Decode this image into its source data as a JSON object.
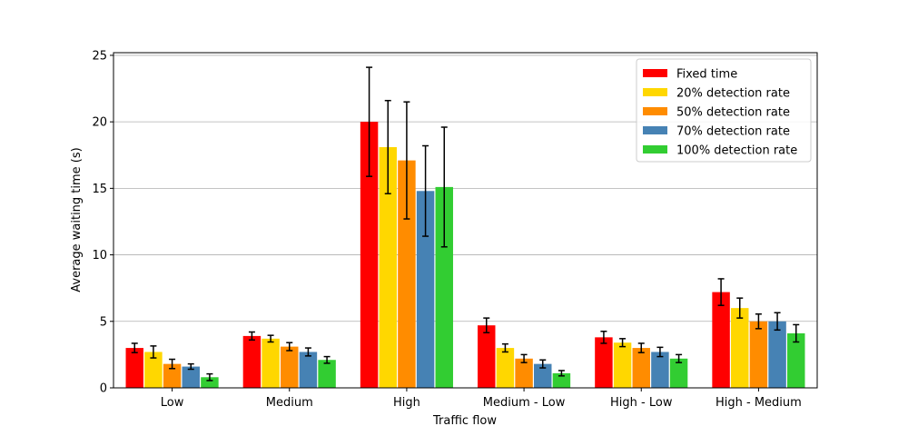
{
  "chart_data": {
    "type": "bar",
    "title": "",
    "xlabel": "Traffic flow",
    "ylabel": "Average waiting time (s)",
    "ylim": [
      0,
      25.2
    ],
    "yticks": [
      0,
      5,
      10,
      15,
      20,
      25
    ],
    "grid": "y",
    "legend_position": "top-right",
    "categories": [
      "Low",
      "Medium",
      "High",
      "Medium - Low",
      "High - Low",
      "High - Medium"
    ],
    "series": [
      {
        "name": "Fixed time",
        "color": "#ff0000",
        "values": [
          3.0,
          3.9,
          20.0,
          4.7,
          3.8,
          7.2
        ],
        "errors": [
          0.35,
          0.3,
          4.1,
          0.55,
          0.45,
          1.0
        ]
      },
      {
        "name": "20% detection rate",
        "color": "#ffd700",
        "values": [
          2.7,
          3.7,
          18.1,
          3.0,
          3.4,
          6.0
        ],
        "errors": [
          0.45,
          0.25,
          3.5,
          0.3,
          0.3,
          0.75
        ]
      },
      {
        "name": "50% detection rate",
        "color": "#ff8c00",
        "values": [
          1.8,
          3.1,
          17.1,
          2.2,
          3.0,
          5.0
        ],
        "errors": [
          0.35,
          0.3,
          4.4,
          0.3,
          0.35,
          0.55
        ]
      },
      {
        "name": "70% detection rate",
        "color": "#4682b4",
        "values": [
          1.6,
          2.7,
          14.8,
          1.8,
          2.7,
          5.0
        ],
        "errors": [
          0.2,
          0.3,
          3.4,
          0.3,
          0.35,
          0.65
        ]
      },
      {
        "name": "100% detection rate",
        "color": "#32cd32",
        "values": [
          0.8,
          2.1,
          15.1,
          1.1,
          2.2,
          4.1
        ],
        "errors": [
          0.25,
          0.25,
          4.5,
          0.2,
          0.3,
          0.65
        ]
      }
    ]
  }
}
